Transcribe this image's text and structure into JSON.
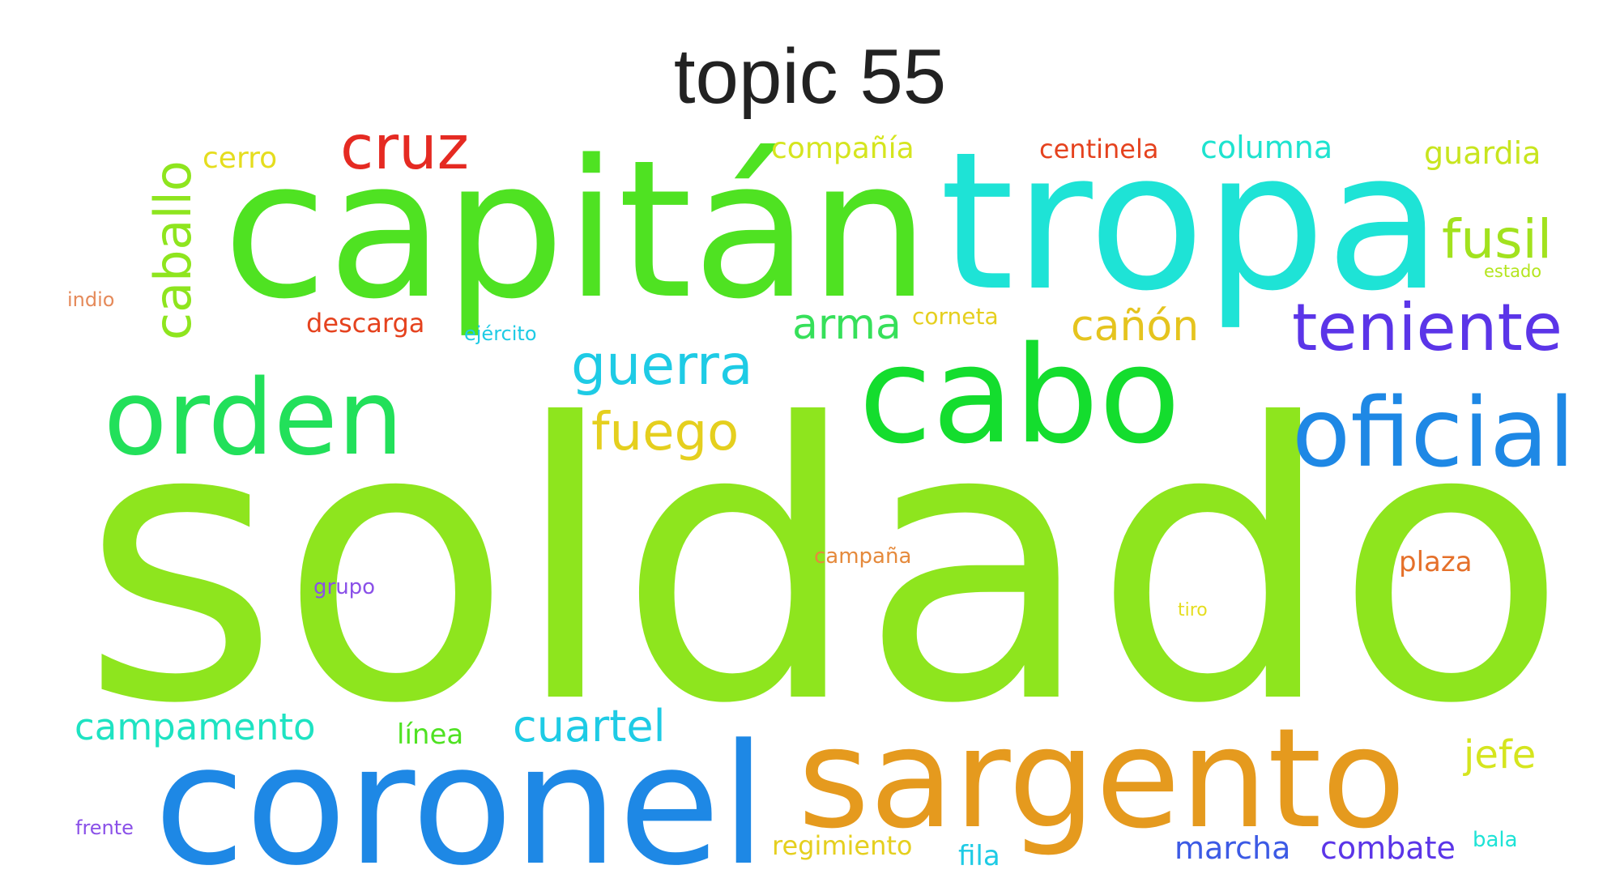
{
  "title": "topic 55",
  "words": [
    {
      "text": "soldado",
      "color": "#8ee51e"
    },
    {
      "text": "capitán",
      "color": "#4fe222"
    },
    {
      "text": "tropa",
      "color": "#1ee3d6"
    },
    {
      "text": "coronel",
      "color": "#1e88e5"
    },
    {
      "text": "sargento",
      "color": "#e59a1e"
    },
    {
      "text": "cabo",
      "color": "#14dd2e"
    },
    {
      "text": "orden",
      "color": "#22e05a"
    },
    {
      "text": "oficial",
      "color": "#1e88e5"
    },
    {
      "text": "teniente",
      "color": "#5b35e8"
    },
    {
      "text": "cruz",
      "color": "#e52a22"
    },
    {
      "text": "caballo",
      "color": "#8ee51e"
    },
    {
      "text": "fusil",
      "color": "#a2e21e"
    },
    {
      "text": "guerra",
      "color": "#1ecbe5"
    },
    {
      "text": "fuego",
      "color": "#e5cf1e"
    },
    {
      "text": "arma",
      "color": "#36e05a"
    },
    {
      "text": "cañón",
      "color": "#e5c41e"
    },
    {
      "text": "cuartel",
      "color": "#1ecbe5"
    },
    {
      "text": "campamento",
      "color": "#1ee3c2"
    },
    {
      "text": "jefe",
      "color": "#d5e51e"
    },
    {
      "text": "cerro",
      "color": "#e5dd1e"
    },
    {
      "text": "compañía",
      "color": "#d5e51e"
    },
    {
      "text": "centinela",
      "color": "#e5421e"
    },
    {
      "text": "columna",
      "color": "#1ee3cf"
    },
    {
      "text": "guardia",
      "color": "#c8e51e"
    },
    {
      "text": "descarga",
      "color": "#e5421e"
    },
    {
      "text": "corneta",
      "color": "#e5cf1e"
    },
    {
      "text": "ejército",
      "color": "#1ecbe5"
    },
    {
      "text": "estado",
      "color": "#b4e51e"
    },
    {
      "text": "indio",
      "color": "#e58a5a"
    },
    {
      "text": "línea",
      "color": "#4fe222"
    },
    {
      "text": "campaña",
      "color": "#e58a3c"
    },
    {
      "text": "plaza",
      "color": "#e5702a"
    },
    {
      "text": "grupo",
      "color": "#8a50e8"
    },
    {
      "text": "tiro",
      "color": "#e5dd1e"
    },
    {
      "text": "regimiento",
      "color": "#e5cf1e"
    },
    {
      "text": "fila",
      "color": "#1ecbe5"
    },
    {
      "text": "marcha",
      "color": "#3c5ae5"
    },
    {
      "text": "combate",
      "color": "#5b35e8"
    },
    {
      "text": "bala",
      "color": "#1ee3d6"
    },
    {
      "text": "frente",
      "color": "#8a50e8"
    }
  ]
}
